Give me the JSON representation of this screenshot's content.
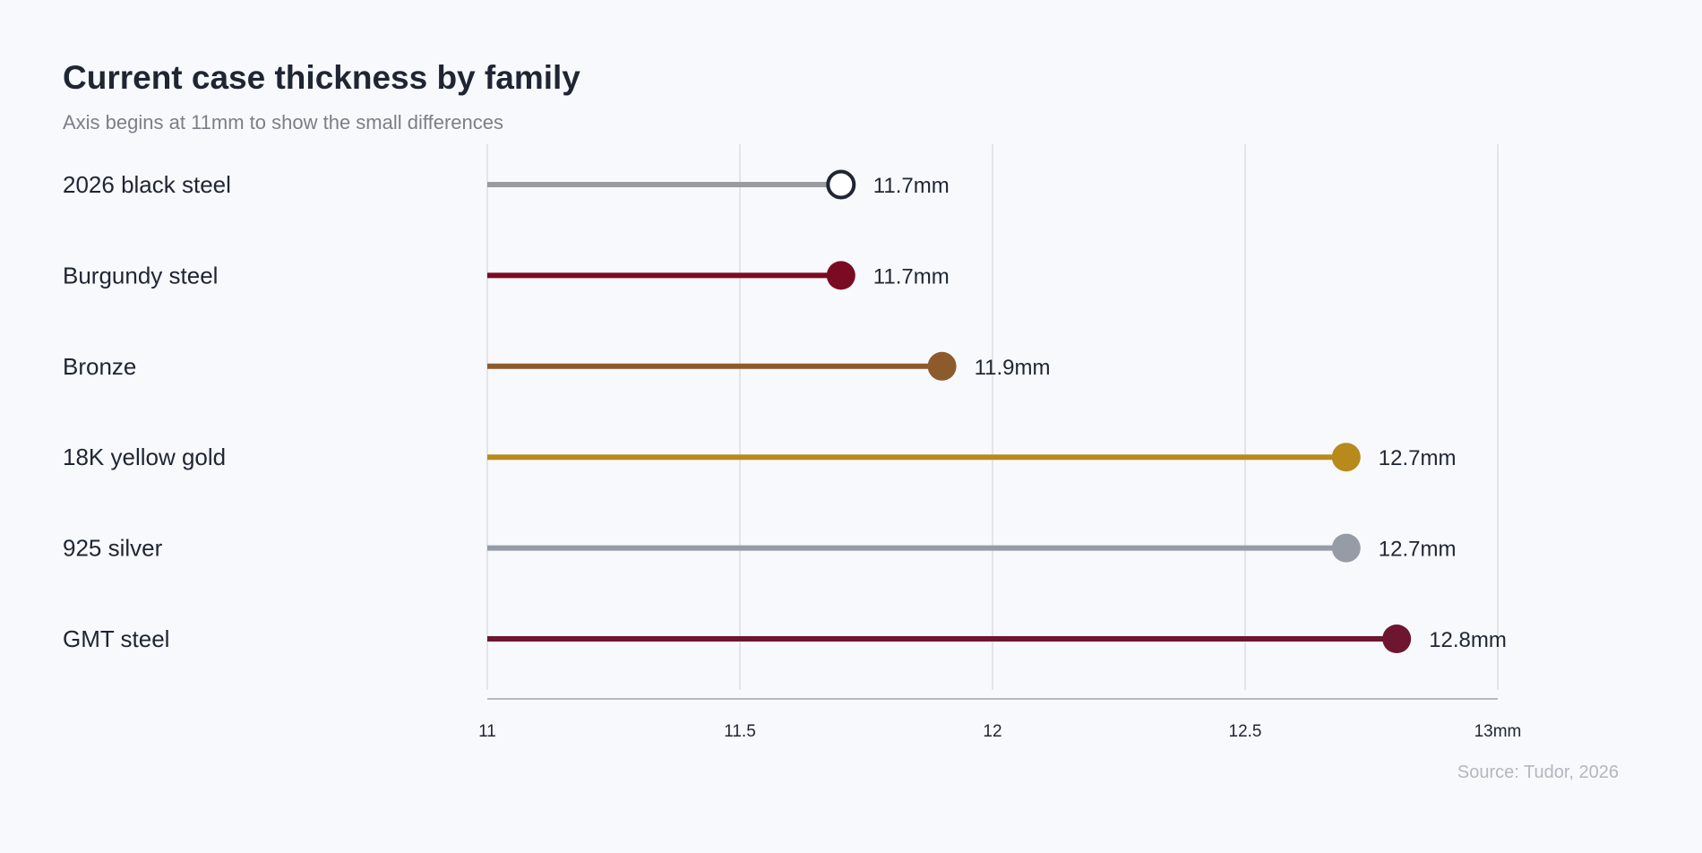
{
  "chart_data": {
    "type": "lollipop",
    "title": "Current case thickness by family",
    "subtitle": "Axis begins at 11mm to show the small differences",
    "source": "Source: Tudor, 2026",
    "unit": "mm",
    "xlim": [
      11,
      13
    ],
    "grid": true,
    "x_ticks": [
      {
        "value": 11,
        "label": "11"
      },
      {
        "value": 11.5,
        "label": "11.5"
      },
      {
        "value": 12,
        "label": "12"
      },
      {
        "value": 12.5,
        "label": "12.5"
      },
      {
        "value": 13,
        "label": "13mm"
      }
    ],
    "series": [
      {
        "category": "2026 black steel",
        "value": 11.7,
        "value_label": "11.7mm",
        "stem_color": "#9a9ca1",
        "dot_fill": "#ffffff",
        "dot_stroke": "#1f2533",
        "hollow": true
      },
      {
        "category": "Burgundy steel",
        "value": 11.7,
        "value_label": "11.7mm",
        "stem_color": "#7a0b22",
        "dot_fill": "#7a0b22",
        "dot_stroke": "#7a0b22",
        "hollow": false
      },
      {
        "category": "Bronze",
        "value": 11.9,
        "value_label": "11.9mm",
        "stem_color": "#8d5a2c",
        "dot_fill": "#8d5a2c",
        "dot_stroke": "#8d5a2c",
        "hollow": false
      },
      {
        "category": "18K yellow gold",
        "value": 12.7,
        "value_label": "12.7mm",
        "stem_color": "#b88a1c",
        "dot_fill": "#b88a1c",
        "dot_stroke": "#b88a1c",
        "hollow": false
      },
      {
        "category": "925 silver",
        "value": 12.7,
        "value_label": "12.7mm",
        "stem_color": "#969ca6",
        "dot_fill": "#969ca6",
        "dot_stroke": "#969ca6",
        "hollow": false
      },
      {
        "category": "GMT steel",
        "value": 12.8,
        "value_label": "12.8mm",
        "stem_color": "#6e1530",
        "dot_fill": "#6e1530",
        "dot_stroke": "#6e1530",
        "hollow": false
      }
    ],
    "colors": {
      "grid": "#e3e5ea",
      "axis": "#b6b9c0",
      "text": "#1f2533"
    }
  }
}
